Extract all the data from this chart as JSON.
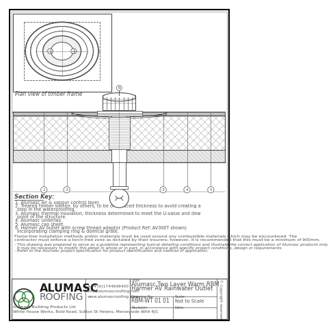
{
  "title_line1": "Alumasc Two Layer Warm RBM",
  "title_line2": "Harmer AV Rainwater Outlet",
  "drawing_no": "RBM-WT 01 01",
  "scale": "Not to Scale",
  "revision_label": "Revision:",
  "date_label": "Date:",
  "title_label": "Title:",
  "scale_label": "Scale:",
  "drawing_no_label": "Drawing No:",
  "company_name": "ALUMASC",
  "company_sub": "ROOFING",
  "company_full": "Alumasc Building Products Ltd",
  "company_address": "White House Works, Bold Road, Sutton St Helens, Merseyside WA9 4JG",
  "phone": "+44 (0)1744648400",
  "email": "info@alumascroofing.com",
  "website": "www.alumascroofing.com",
  "plan_label": "Plan view of timber frame",
  "section_key_title": "Section Key:",
  "section_items": [
    "1. Alumasc air & vapour control layer.",
    "2. Treated timber batten, by others, to be of reduced thickness to avoid creating a step in the waterproofing.",
    "3. Alumasc thermal insulation, thickness determined to meet the U-value and dew point of the structure.",
    "4. Alumasc underlay.",
    "5. Alumasc cap sheet.",
    "6. Harmer AV outlet with screw thread adaptor (Product Ref: AV300T shown) incorporating clamping ring & domical grate."
  ],
  "flame_free_text": "Flame-free installation methods and/or materials must be used around any combustible materials which may be encountered. The\ncontractor must enforce a torch-free zone as dictated by their insurers; however, it is recommended that this must be a minimum of 900mm.",
  "disclaimer_text": "- This drawing was prepared to serve as a guideline representing typical detailing conditions and illustrate the correct application of Alumasc products only.\n  It may be necessary to modify this detail in whole or in part, in accordance with specific project conditions, design or requirements.\n- Refer to the Alumasc project specification for product identification and method of application.",
  "bg_color": "#ffffff",
  "border_color": "#000000",
  "dc": "#505050",
  "green_color": "#3a8a3a"
}
